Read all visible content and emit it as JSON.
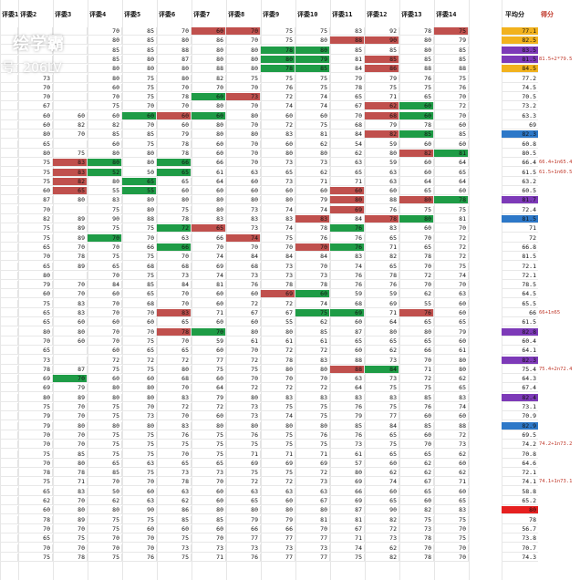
{
  "headers": [
    "评委1",
    "评委2",
    "评委3",
    "评委4",
    "评委5",
    "评委6",
    "评委7",
    "评委8",
    "评委9",
    "评委10",
    "评委11",
    "评委12",
    "评委13",
    "评委14"
  ],
  "avg_header": "平均分",
  "score_header": "得分",
  "watermark": {
    "logo": "绘学霸",
    "id": "号: 206LV"
  },
  "colors": {
    "red": "#c0504d",
    "green": "#1e9c46",
    "gold": "#f2b21d",
    "purple": "#7d3ab8",
    "blue": "#2d78c8"
  },
  "rows": [
    {
      "c": [
        "",
        "",
        "",
        "70",
        "85",
        "70",
        "60",
        "70",
        "75",
        "75",
        "83",
        "92",
        "78",
        "75"
      ],
      "h": "......RR.....RR..",
      "k": "",
      "avg": "77.1",
      "a": "gold",
      "note": ""
    },
    {
      "c": [
        "",
        "",
        "",
        "80",
        "85",
        "80",
        "86",
        "70",
        "75",
        "80",
        "88",
        "90",
        "80",
        "79"
      ],
      "h": "..........RR..",
      "k": "",
      "avg": "82.5",
      "a": "gold",
      "note": ""
    },
    {
      "c": [
        "",
        "",
        "",
        "85",
        "85",
        "88",
        "80",
        "80",
        "78",
        "80",
        "85",
        "85",
        "80",
        "85"
      ],
      "h": "........GG....",
      "k": "",
      "avg": "83.5",
      "a": "purple",
      "note": ""
    },
    {
      "c": [
        "",
        "",
        "",
        "85",
        "80",
        "87",
        "80",
        "80",
        "80",
        "79",
        "81",
        "85",
        "85",
        "85"
      ],
      "h": "........GG.R..",
      "k": "",
      "avg": "81.5",
      "a": "purple",
      "note": "81.5+2*79.5"
    },
    {
      "c": [
        "",
        "",
        "",
        "80",
        "80",
        "80",
        "88",
        "80",
        "78",
        "85",
        "84",
        "86",
        "88",
        "88"
      ],
      "h": "........GG.R..",
      "k": "",
      "avg": "84.5",
      "a": "gold",
      "note": ""
    },
    {
      "c": [
        "",
        "73",
        "",
        "80",
        "75",
        "80",
        "82",
        "75",
        "75",
        "75",
        "79",
        "79",
        "76",
        "75"
      ],
      "h": "..............",
      "k": "",
      "avg": "77.2",
      "a": "",
      "note": ""
    },
    {
      "c": [
        "",
        "70",
        "",
        "60",
        "75",
        "70",
        "70",
        "70",
        "76",
        "75",
        "78",
        "75",
        "75",
        "76"
      ],
      "h": "...............",
      "k": "",
      "avg": "74.5",
      "a": "",
      "note": ""
    },
    {
      "c": [
        "",
        "70",
        "",
        "70",
        "75",
        "78",
        "60",
        "73",
        "72",
        "74",
        "65",
        "71",
        "65",
        "70"
      ],
      "h": "......GR......",
      "k": "",
      "avg": "70.5",
      "a": "",
      "note": ""
    },
    {
      "c": [
        "",
        "67",
        "",
        "75",
        "70",
        "70",
        "80",
        "70",
        "74",
        "74",
        "67",
        "62",
        "60",
        "72"
      ],
      "h": "...........RG.",
      "k": "",
      "avg": "73.2",
      "a": "",
      "note": ""
    },
    {
      "c": [
        "",
        "60",
        "60",
        "60",
        "60",
        "60",
        "60",
        "80",
        "60",
        "60",
        "70",
        "68",
        "60",
        "70"
      ],
      "h": "....GRG....RG.",
      "k": "",
      "avg": "63.3",
      "a": "",
      "note": ""
    },
    {
      "c": [
        "",
        "60",
        "82",
        "82",
        "70",
        "60",
        "80",
        "70",
        "72",
        "75",
        "68",
        "79",
        "78",
        "60"
      ],
      "h": "..............",
      "k": "",
      "avg": "69",
      "a": "",
      "note": ""
    },
    {
      "c": [
        "",
        "80",
        "70",
        "85",
        "85",
        "79",
        "80",
        "80",
        "83",
        "81",
        "84",
        "82",
        "85",
        "85"
      ],
      "h": "...........RG.",
      "k": "",
      "avg": "82.3",
      "a": "blue",
      "note": ""
    },
    {
      "c": [
        "",
        "65",
        "",
        "60",
        "75",
        "78",
        "60",
        "70",
        "60",
        "62",
        "54",
        "59",
        "60",
        "60"
      ],
      "h": "...............",
      "k": "",
      "avg": "60.8",
      "a": "",
      "note": ""
    },
    {
      "c": [
        "",
        "80",
        "75",
        "80",
        "80",
        "78",
        "60",
        "70",
        "80",
        "80",
        "62",
        "80",
        "82",
        "81"
      ],
      "h": "............RG",
      "k": "",
      "avg": "80.5",
      "a": "",
      "note": ""
    },
    {
      "c": [
        "",
        "75",
        "83",
        "80",
        "80",
        "66",
        "66",
        "70",
        "73",
        "73",
        "63",
        "59",
        "60",
        "64"
      ],
      "h": "..RG.G........",
      "k": "",
      "avg": "66.4",
      "a": "",
      "note": "66.4+1n65.4"
    },
    {
      "c": [
        "",
        "75",
        "83",
        "52",
        "50",
        "65",
        "61",
        "63",
        "65",
        "62",
        "65",
        "63",
        "60",
        "65"
      ],
      "h": "..RG.G........",
      "k": "",
      "avg": "61.5",
      "a": "",
      "note": "61.5+1n60.5"
    },
    {
      "c": [
        "",
        "75",
        "82",
        "80",
        "65",
        "65",
        "64",
        "60",
        "73",
        "71",
        "71",
        "63",
        "64",
        "64"
      ],
      "h": "..R.G.........",
      "k": "",
      "avg": "63.2",
      "a": "",
      "note": ""
    },
    {
      "c": [
        "",
        "60",
        "65",
        "55",
        "55",
        "60",
        "60",
        "60",
        "60",
        "60",
        "60",
        "60",
        "65",
        "60"
      ],
      "h": "..R.G.....R...",
      "k": "",
      "avg": "60.5",
      "a": "",
      "note": ""
    },
    {
      "c": [
        "",
        "87",
        "80",
        "83",
        "80",
        "80",
        "80",
        "80",
        "80",
        "79",
        "80",
        "88",
        "80",
        "78"
      ],
      "h": "..........R.RG",
      "k": "",
      "avg": "81.7",
      "a": "purple",
      "note": ""
    },
    {
      "c": [
        "",
        "70",
        "",
        "75",
        "80",
        "75",
        "80",
        "73",
        "74",
        "74",
        "69",
        "76",
        "75",
        "75"
      ],
      "h": "..........R...",
      "k": "",
      "avg": "72.4",
      "a": "",
      "note": ""
    },
    {
      "c": [
        "",
        "82",
        "89",
        "90",
        "88",
        "78",
        "83",
        "83",
        "83",
        "83",
        "84",
        "78",
        "80",
        "81"
      ],
      "h": ".........R.RG.",
      "k": "",
      "avg": "81.5",
      "a": "blue",
      "note": ""
    },
    {
      "c": [
        "",
        "75",
        "89",
        "75",
        "75",
        "72",
        "65",
        "73",
        "74",
        "78",
        "76",
        "83",
        "60",
        "70"
      ],
      "h": ".....GR...G...",
      "k": "",
      "avg": "71",
      "a": "",
      "note": ""
    },
    {
      "c": [
        "",
        "75",
        "89",
        "70",
        "70",
        "63",
        "66",
        "74",
        "75",
        "76",
        "76",
        "65",
        "70",
        "72"
      ],
      "h": "...G...R......",
      "k": "",
      "avg": "72",
      "a": "",
      "note": ""
    },
    {
      "c": [
        "",
        "65",
        "70",
        "70",
        "66",
        "66",
        "70",
        "70",
        "70",
        "70",
        "76",
        "71",
        "65",
        "72"
      ],
      "h": ".....G...RG...",
      "k": "",
      "avg": "66.8",
      "a": "",
      "note": ""
    },
    {
      "c": [
        "",
        "70",
        "78",
        "75",
        "75",
        "70",
        "74",
        "84",
        "84",
        "84",
        "83",
        "82",
        "78",
        "72"
      ],
      "h": "..............",
      "k": "",
      "avg": "81.5",
      "a": "",
      "note": ""
    },
    {
      "c": [
        "",
        "65",
        "89",
        "65",
        "68",
        "68",
        "69",
        "68",
        "73",
        "70",
        "74",
        "65",
        "70",
        "75"
      ],
      "h": "..............",
      "k": "",
      "avg": "72.1",
      "a": "",
      "note": ""
    },
    {
      "c": [
        "",
        "80",
        "",
        "70",
        "75",
        "73",
        "74",
        "73",
        "73",
        "73",
        "76",
        "78",
        "72",
        "74"
      ],
      "h": "..............",
      "k": "",
      "avg": "72.1",
      "a": "",
      "note": ""
    },
    {
      "c": [
        "",
        "79",
        "70",
        "84",
        "85",
        "84",
        "81",
        "76",
        "78",
        "78",
        "76",
        "76",
        "70",
        "70"
      ],
      "h": "..............",
      "k": "",
      "avg": "78.5",
      "a": "",
      "note": ""
    },
    {
      "c": [
        "",
        "60",
        "70",
        "60",
        "65",
        "70",
        "60",
        "60",
        "69",
        "60",
        "59",
        "59",
        "62",
        "63"
      ],
      "h": "........RG....",
      "k": "",
      "avg": "64.5",
      "a": "",
      "note": ""
    },
    {
      "c": [
        "",
        "75",
        "83",
        "70",
        "68",
        "70",
        "60",
        "72",
        "72",
        "74",
        "68",
        "69",
        "55",
        "60"
      ],
      "h": "..............",
      "k": "",
      "avg": "65.5",
      "a": "",
      "note": ""
    },
    {
      "c": [
        "",
        "65",
        "83",
        "70",
        "70",
        "83",
        "71",
        "67",
        "67",
        "75",
        "69",
        "71",
        "76",
        "60"
      ],
      "h": ".....R...GG.R.",
      "k": "",
      "avg": "66",
      "a": "",
      "note": "66+1n65"
    },
    {
      "c": [
        "",
        "65",
        "60",
        "60",
        "60",
        "65",
        "60",
        "60",
        "55",
        "62",
        "60",
        "64",
        "65",
        "65"
      ],
      "h": "..............",
      "k": "",
      "avg": "61.5",
      "a": "",
      "note": ""
    },
    {
      "c": [
        "",
        "80",
        "80",
        "70",
        "70",
        "78",
        "70",
        "80",
        "80",
        "85",
        "87",
        "80",
        "80",
        "79"
      ],
      "h": ".....RG.......",
      "k": "",
      "avg": "82.8",
      "a": "purple",
      "note": ""
    },
    {
      "c": [
        "",
        "70",
        "60",
        "70",
        "75",
        "70",
        "59",
        "61",
        "61",
        "61",
        "65",
        "65",
        "65",
        "60"
      ],
      "h": "..............",
      "k": "",
      "avg": "60.4",
      "a": "",
      "note": ""
    },
    {
      "c": [
        "",
        "65",
        "",
        "60",
        "65",
        "65",
        "60",
        "70",
        "72",
        "72",
        "60",
        "62",
        "66",
        "61"
      ],
      "h": "..............",
      "k": "",
      "avg": "64.1",
      "a": "",
      "note": ""
    },
    {
      "c": [
        "",
        "73",
        "",
        "72",
        "72",
        "72",
        "77",
        "72",
        "78",
        "83",
        "88",
        "73",
        "70",
        "80"
      ],
      "h": "..............",
      "k": "",
      "avg": "82.3",
      "a": "purple",
      "note": ""
    },
    {
      "c": [
        "",
        "78",
        "87",
        "75",
        "75",
        "80",
        "75",
        "75",
        "80",
        "80",
        "88",
        "84",
        "71",
        "80"
      ],
      "h": "..........RG..",
      "k": "",
      "avg": "75.4",
      "a": "",
      "note": "75.4+2n72.4"
    },
    {
      "c": [
        "",
        "69",
        "70",
        "60",
        "60",
        "68",
        "60",
        "70",
        "70",
        "70",
        "63",
        "73",
        "72",
        "62"
      ],
      "h": "..G...........",
      "k": "",
      "avg": "64.3",
      "a": "",
      "note": ""
    },
    {
      "c": [
        "",
        "69",
        "79",
        "80",
        "80",
        "70",
        "64",
        "72",
        "72",
        "72",
        "64",
        "75",
        "75",
        "65"
      ],
      "h": "..............",
      "k": "",
      "avg": "67.4",
      "a": "",
      "note": ""
    },
    {
      "c": [
        "",
        "80",
        "89",
        "80",
        "80",
        "83",
        "79",
        "80",
        "83",
        "83",
        "83",
        "83",
        "85",
        "83"
      ],
      "h": "..............",
      "k": "",
      "avg": "82.4",
      "a": "purple",
      "note": ""
    },
    {
      "c": [
        "",
        "75",
        "70",
        "75",
        "70",
        "72",
        "72",
        "73",
        "75",
        "75",
        "76",
        "75",
        "76",
        "74"
      ],
      "h": "..............",
      "k": "",
      "avg": "73.1",
      "a": "",
      "note": ""
    },
    {
      "c": [
        "",
        "79",
        "70",
        "75",
        "73",
        "70",
        "60",
        "73",
        "74",
        "75",
        "79",
        "77",
        "60",
        "60"
      ],
      "h": "..............",
      "k": "",
      "avg": "70.9",
      "a": "",
      "note": ""
    },
    {
      "c": [
        "",
        "79",
        "80",
        "80",
        "80",
        "83",
        "80",
        "80",
        "80",
        "80",
        "85",
        "84",
        "85",
        "88"
      ],
      "h": "..............",
      "k": "",
      "avg": "82.9",
      "a": "blue",
      "note": ""
    },
    {
      "c": [
        "",
        "70",
        "70",
        "75",
        "75",
        "76",
        "75",
        "76",
        "75",
        "76",
        "76",
        "65",
        "60",
        "72"
      ],
      "h": "..............",
      "k": "",
      "avg": "69.5",
      "a": "",
      "note": ""
    },
    {
      "c": [
        "",
        "70",
        "70",
        "75",
        "75",
        "75",
        "75",
        "75",
        "75",
        "75",
        "73",
        "75",
        "70",
        "73"
      ],
      "h": "..............",
      "k": "",
      "avg": "74.2",
      "a": "",
      "note": "74.2+1n73.2"
    },
    {
      "c": [
        "",
        "75",
        "85",
        "75",
        "75",
        "70",
        "75",
        "71",
        "71",
        "71",
        "61",
        "65",
        "65",
        "62"
      ],
      "h": "..............",
      "k": "",
      "avg": "70.8",
      "a": "",
      "note": ""
    },
    {
      "c": [
        "",
        "70",
        "80",
        "65",
        "63",
        "65",
        "65",
        "69",
        "69",
        "69",
        "57",
        "60",
        "62",
        "60"
      ],
      "h": "..............",
      "k": "",
      "avg": "64.6",
      "a": "",
      "note": ""
    },
    {
      "c": [
        "",
        "78",
        "78",
        "85",
        "75",
        "73",
        "73",
        "75",
        "75",
        "72",
        "80",
        "62",
        "62",
        "62"
      ],
      "h": "..............",
      "k": "",
      "avg": "72.1",
      "a": "",
      "note": ""
    },
    {
      "c": [
        "",
        "75",
        "71",
        "70",
        "70",
        "78",
        "70",
        "72",
        "72",
        "73",
        "69",
        "74",
        "67",
        "71"
      ],
      "h": "..............",
      "k": "",
      "avg": "74.1",
      "a": "",
      "note": "74.1+1n73.1"
    },
    {
      "c": [
        "",
        "65",
        "83",
        "50",
        "60",
        "63",
        "60",
        "63",
        "63",
        "63",
        "66",
        "60",
        "65",
        "60"
      ],
      "h": "..............",
      "k": "",
      "avg": "58.8",
      "a": "",
      "note": ""
    },
    {
      "c": [
        "",
        "62",
        "70",
        "62",
        "63",
        "62",
        "60",
        "65",
        "60",
        "67",
        "69",
        "65",
        "60",
        "65"
      ],
      "h": "..............",
      "k": "",
      "avg": "65.2",
      "a": "",
      "note": ""
    },
    {
      "c": [
        "",
        "60",
        "80",
        "80",
        "90",
        "86",
        "80",
        "80",
        "80",
        "80",
        "87",
        "90",
        "82",
        "83"
      ],
      "h": "..............",
      "k": "",
      "avg": "80",
      "a": "red",
      "note": ""
    },
    {
      "c": [
        "",
        "78",
        "89",
        "75",
        "75",
        "85",
        "85",
        "79",
        "79",
        "81",
        "81",
        "82",
        "75",
        "75"
      ],
      "h": "..............",
      "k": "",
      "avg": "78",
      "a": "",
      "note": ""
    },
    {
      "c": [
        "",
        "70",
        "70",
        "75",
        "60",
        "60",
        "60",
        "66",
        "66",
        "70",
        "67",
        "72",
        "73",
        "70"
      ],
      "h": "..............",
      "k": "",
      "avg": "56.7",
      "a": "",
      "note": ""
    },
    {
      "c": [
        "",
        "65",
        "75",
        "70",
        "70",
        "75",
        "70",
        "77",
        "77",
        "77",
        "71",
        "73",
        "78",
        "75"
      ],
      "h": "..............",
      "k": "",
      "avg": "73.8",
      "a": "",
      "note": ""
    },
    {
      "c": [
        "",
        "70",
        "70",
        "70",
        "70",
        "73",
        "73",
        "73",
        "73",
        "73",
        "74",
        "62",
        "70",
        "70"
      ],
      "h": "..............",
      "k": "",
      "avg": "70.7",
      "a": "",
      "note": ""
    },
    {
      "c": [
        "",
        "75",
        "78",
        "75",
        "76",
        "75",
        "71",
        "76",
        "77",
        "77",
        "75",
        "82",
        "78",
        "70"
      ],
      "h": "..............",
      "k": "",
      "avg": "74.3",
      "a": "",
      "note": ""
    }
  ]
}
